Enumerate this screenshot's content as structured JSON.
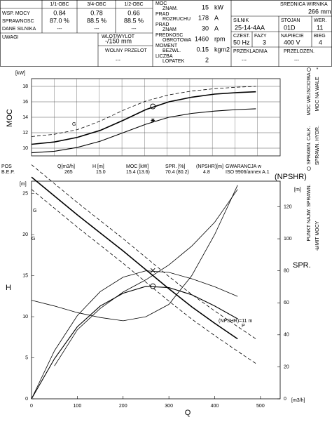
{
  "header": {
    "eff_cols": [
      "1/1-OBC",
      "3/4-OBC",
      "1/2-OBC"
    ],
    "eff_rows": [
      {
        "label": "WSP. MOCY",
        "values": [
          "0.84",
          "0.78",
          "0.66"
        ]
      },
      {
        "label": "SPRAWNOSC",
        "values": [
          "87.0 %",
          "88.5 %",
          "88.5 %"
        ]
      },
      {
        "label": "DANE SILNIKA",
        "values": [
          "---",
          "---",
          "---"
        ]
      }
    ],
    "remarks": "UWAGI",
    "inlet": {
      "label": "WLOT/WYLOT",
      "value": "-/150 mm"
    },
    "free_passage": {
      "label": "WOLNY PRZELOT",
      "value": "---"
    },
    "motor": [
      {
        "label": [
          "MOC",
          "ZNAM."
        ],
        "value": "15",
        "unit": "kW"
      },
      {
        "label": [
          "PRAD",
          "ROZRUCHU"
        ],
        "value": "178",
        "unit": "A"
      },
      {
        "label": [
          "PRAD",
          "ZNAM"
        ],
        "value": "30",
        "unit": "A"
      },
      {
        "label": [
          "PREDKOSC",
          "OBROTOWA"
        ],
        "value": "1460",
        "unit": "rpm"
      },
      {
        "label": [
          "MOMENT",
          "BEZWL."
        ],
        "value": "0.15",
        "unit": "kgm2"
      },
      {
        "label": [
          "LICZBA",
          "LOPATEK"
        ],
        "value": "2"
      }
    ],
    "impeller": {
      "label": "SREDNICA WIRNIKA",
      "value": "266 mm"
    },
    "specs": [
      {
        "label": "SILNIK",
        "value": "25-14-4AA"
      },
      {
        "label": "STOJAN",
        "value": "01D"
      },
      {
        "label": "WER.",
        "value": "11"
      },
      {
        "label": "CZEST.",
        "value": "50 Hz"
      },
      {
        "label": "FAZY",
        "value": "3"
      },
      {
        "label": "NAPIECIE",
        "value": "400 V"
      },
      {
        "label": "BIEG",
        "value": "4"
      },
      {
        "label": "PRZEKLADNIA",
        "value": "---"
      },
      {
        "label": "PRZELOZEN.",
        "value": "---"
      }
    ]
  },
  "bep": {
    "headers": [
      "POS",
      "Q[m3/h]",
      "H [m]",
      "MOC [kW]",
      "SPR. [%]",
      "(NPSHR)[m]",
      "GWARANCJA  w"
    ],
    "values": [
      "B.E.P.",
      "265",
      "15.0",
      "15.4 (13.6)",
      "70.4 (80.2)",
      "4.8",
      "ISO 9906/annex A.1"
    ]
  },
  "legend": [
    "MOC WEJSCIOWA",
    "MOC NA WALE",
    "SPRAWN. CALK.",
    "SPRAWN. HYDR.",
    "PUNKT NAJW. SPRAWN.",
    "LIMIT MOCY"
  ],
  "chart_data": [
    {
      "type": "line",
      "ylabel": "MOC",
      "yunit": "[kW]",
      "xlim": [
        0,
        543
      ],
      "ylim": [
        9,
        19
      ],
      "yticks": [
        10,
        12,
        14,
        16,
        18
      ],
      "grid": true,
      "x": [
        0,
        50,
        100,
        150,
        200,
        250,
        300,
        350,
        400,
        450,
        490
      ],
      "series": [
        {
          "color": "#000",
          "width": 1.6,
          "dash": false,
          "values": [
            10.5,
            10.8,
            11.4,
            12.3,
            13.6,
            15,
            16,
            16.6,
            17,
            17.2,
            17.3
          ]
        },
        {
          "color": "#000",
          "width": 0.8,
          "dash": true,
          "values": [
            11.5,
            11.8,
            12.4,
            13.5,
            14.9,
            16.1,
            16.9,
            17.4,
            17.7,
            17.9,
            18
          ]
        },
        {
          "color": "#000",
          "width": 1.1,
          "dash": false,
          "values": [
            9.4,
            9.6,
            10.1,
            10.9,
            12,
            13.1,
            14,
            14.5,
            14.8,
            15,
            15.1
          ]
        }
      ],
      "points": [
        {
          "x": 265,
          "y": 15.4,
          "symbol": "circle"
        },
        {
          "x": 265,
          "y": 13.6,
          "symbol": "star"
        }
      ],
      "annotations": [
        "G"
      ]
    },
    {
      "type": "line",
      "xlabel": "Q",
      "xunit": "[m3/h]",
      "ylabel": "H",
      "yunit": "[m]",
      "y2label": "SPR.",
      "npsh_label": "(NPSHR)",
      "y2unit": "[m]",
      "xlim": [
        0,
        543
      ],
      "xticks": [
        0,
        100,
        200,
        300,
        400,
        500
      ],
      "ylim": [
        0,
        26.5
      ],
      "yticks": [
        0,
        5,
        10,
        15,
        20,
        25
      ],
      "y2lim": [
        0,
        136
      ],
      "y2ticks": [
        0,
        20,
        40,
        60,
        80,
        100,
        120
      ],
      "grid": false,
      "x": [
        0,
        50,
        100,
        150,
        200,
        250,
        300,
        350,
        400,
        450,
        490
      ],
      "series": [
        {
          "color": "#000",
          "width": 1.6,
          "dash": false,
          "values": [
            27,
            24.7,
            22.4,
            20.2,
            18,
            15.7,
            13.4,
            11.2,
            9.2,
            7.3,
            null
          ]
        },
        {
          "color": "#000",
          "width": 0.8,
          "dash": true,
          "values": [
            28.5,
            26.2,
            23.9,
            21.7,
            19.5,
            17.2,
            14.9,
            12.7,
            10.7,
            8.8,
            7.3
          ]
        },
        {
          "color": "#000",
          "width": 0.8,
          "dash": true,
          "values": [
            25.5,
            23.2,
            20.9,
            18.7,
            16.5,
            14.2,
            11.9,
            9.7,
            7.7,
            5.8,
            4.3
          ]
        },
        {
          "color": "#000",
          "width": 1.1,
          "dash": false,
          "axis": "y2",
          "values": [
            0,
            25,
            45,
            58,
            66,
            70.3,
            69.5,
            65,
            58,
            50,
            null
          ]
        },
        {
          "color": "#000",
          "width": 0.8,
          "dash": false,
          "axis": "y2",
          "values": [
            0,
            30,
            52,
            67,
            76,
            80,
            79,
            75,
            70,
            64,
            null
          ]
        },
        {
          "color": "#000",
          "width": 0.8,
          "dash": false,
          "values": [
            null,
            4,
            8.4,
            11,
            13,
            14.5,
            16.3,
            18.6,
            21.5,
            25.5,
            null
          ]
        },
        {
          "color": "#000",
          "width": 0.8,
          "dash": false,
          "values": [
            12,
            11.3,
            10.5,
            9.9,
            9.5,
            10,
            11.5,
            15,
            20,
            26,
            null
          ]
        }
      ],
      "points": [
        {
          "x": 265,
          "y": 70.4,
          "symbol": "circle",
          "axis": "y2"
        },
        {
          "x": 265,
          "y": 80.2,
          "symbol": "cross",
          "axis": "y2"
        }
      ],
      "annotations": [
        "G",
        "G",
        "(NPSHR)=11 m",
        "P"
      ]
    }
  ]
}
